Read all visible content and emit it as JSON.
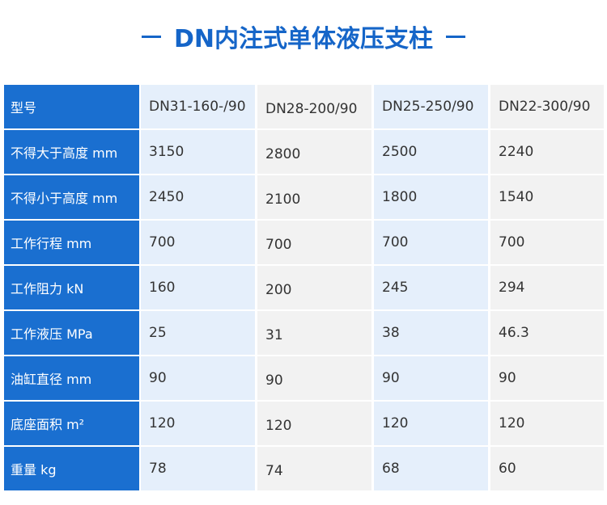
{
  "header": {
    "title": "DN内注式单体液压支柱"
  },
  "table": {
    "columns": [
      "型号",
      "DN31-160-/90",
      "DN28-200/90",
      "DN25-250/90",
      "DN22-300/90"
    ],
    "rows": [
      [
        "不得大于高度 mm",
        3150,
        2800,
        2500,
        2240
      ],
      [
        "不得小于高度 mm",
        2450,
        2100,
        1800,
        1540
      ],
      [
        "工作行程 mm",
        700,
        700,
        700,
        700
      ],
      [
        "工作阻力 kN",
        160,
        200,
        245,
        294
      ],
      [
        "工作液压 MPa",
        25,
        31,
        38,
        46.3
      ],
      [
        "油缸直径 mm",
        90,
        90,
        90,
        90
      ],
      [
        "底座面积 m²",
        120,
        120,
        120,
        120
      ],
      [
        "重量 kg",
        78,
        74,
        68,
        60
      ]
    ]
  }
}
